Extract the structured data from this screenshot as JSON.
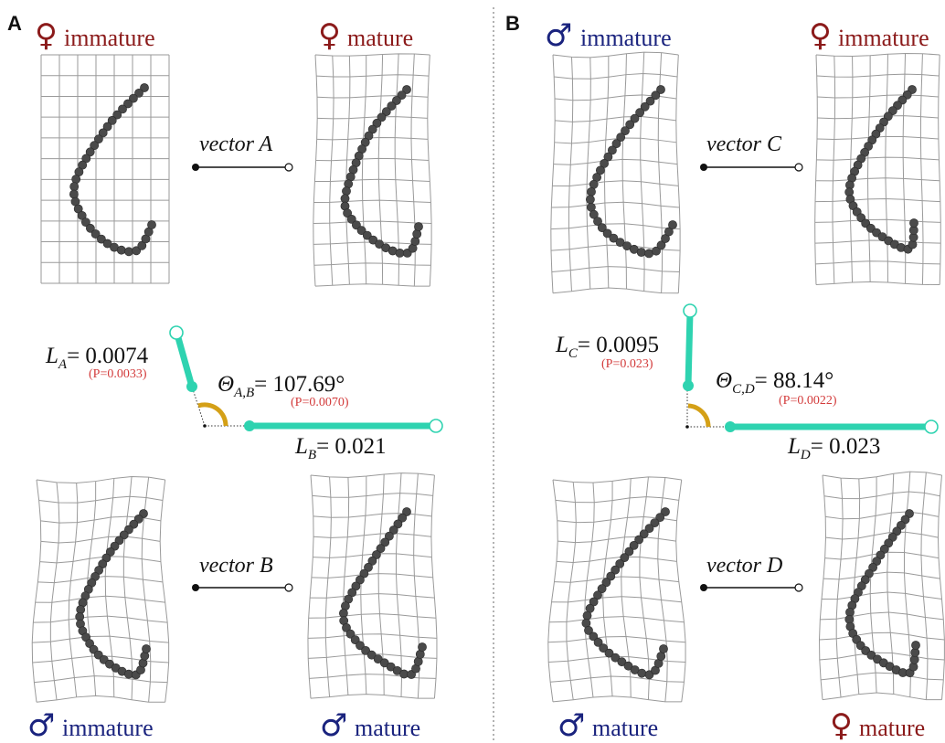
{
  "colors": {
    "female": "#8b1a1a",
    "male": "#1a237e",
    "vector": "#2ed3b0",
    "angle": "#d4a017",
    "pvalue": "#d33b3b",
    "grid": "#9a9a9a",
    "dots": "#4a4a4a"
  },
  "symbols": {
    "female": "♀",
    "male": "♂"
  },
  "panels": [
    {
      "letter": "A",
      "shapes": [
        {
          "sex": "female",
          "label": "immature"
        },
        {
          "sex": "female",
          "label": "mature"
        },
        {
          "sex": "male",
          "label": "immature"
        },
        {
          "sex": "male",
          "label": "mature"
        }
      ],
      "vectors": [
        "vector A",
        "vector B"
      ],
      "stats": {
        "l1": {
          "name": "L",
          "sub": "A",
          "value": "= 0.0074",
          "p": "(P=0.0033)"
        },
        "theta": {
          "name": "Θ",
          "sub": "A,B",
          "value": "= 107.69°",
          "p": "(P=0.0070)"
        },
        "l2": {
          "name": "L",
          "sub": "B",
          "value": "= 0.021"
        }
      }
    },
    {
      "letter": "B",
      "shapes": [
        {
          "sex": "male",
          "label": "immature"
        },
        {
          "sex": "female",
          "label": "immature"
        },
        {
          "sex": "male",
          "label": "mature"
        },
        {
          "sex": "female",
          "label": "mature"
        }
      ],
      "vectors": [
        "vector C",
        "vector D"
      ],
      "stats": {
        "l1": {
          "name": "L",
          "sub": "C",
          "value": "= 0.0095",
          "p": "(P=0.023)"
        },
        "theta": {
          "name": "Θ",
          "sub": "C,D",
          "value": "= 88.14°",
          "p": "(P=0.0022)"
        },
        "l2": {
          "name": "L",
          "sub": "D",
          "value": "= 0.023"
        }
      }
    }
  ]
}
